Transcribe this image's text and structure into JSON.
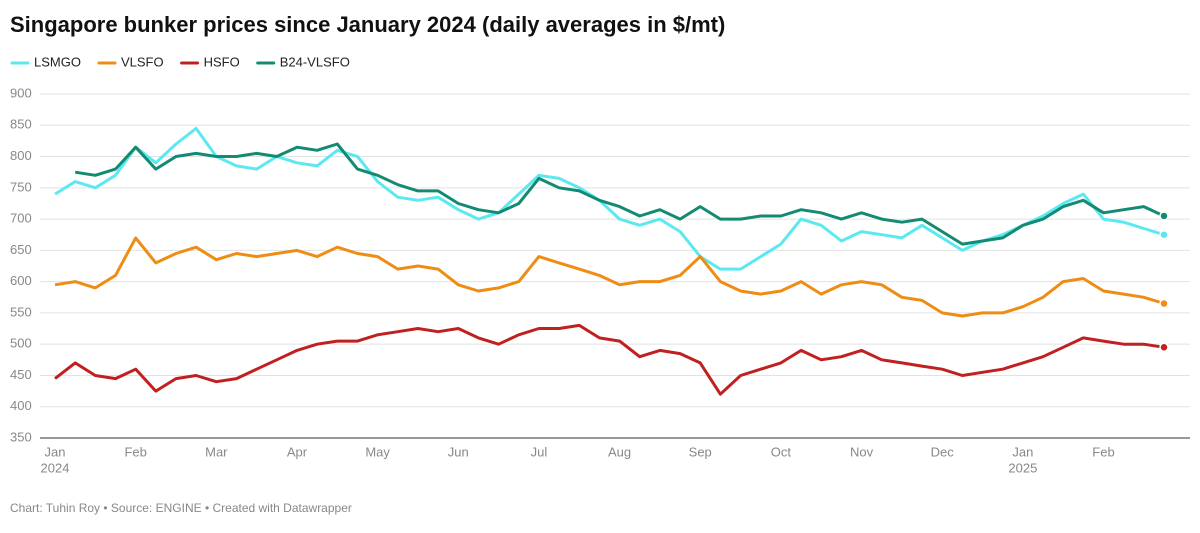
{
  "chart_data": {
    "type": "line",
    "title": "Singapore bunker prices since January 2024 (daily averages in $/mt)",
    "source": "Chart: Tuhin Roy • Source: ENGINE • Created with Datawrapper",
    "categories": [
      "Jan",
      null,
      null,
      null,
      "Feb",
      null,
      null,
      null,
      "Mar",
      null,
      null,
      null,
      "Apr",
      null,
      null,
      null,
      "May",
      null,
      null,
      null,
      "Jun",
      null,
      null,
      null,
      "Jul",
      null,
      null,
      null,
      "Aug",
      null,
      null,
      null,
      "Sep",
      null,
      null,
      null,
      "Oct",
      null,
      null,
      null,
      "Nov",
      null,
      null,
      null,
      "Dec",
      null,
      null,
      null,
      "Jan",
      null,
      null,
      null,
      "Feb",
      null,
      null,
      null
    ],
    "category_years": [
      "2024",
      null,
      null,
      null,
      null,
      null,
      null,
      null,
      null,
      null,
      null,
      null,
      null,
      null,
      null,
      null,
      null,
      null,
      null,
      null,
      null,
      null,
      null,
      null,
      null,
      null,
      null,
      null,
      null,
      null,
      null,
      null,
      null,
      null,
      null,
      null,
      null,
      null,
      null,
      null,
      null,
      null,
      null,
      null,
      null,
      null,
      null,
      null,
      "2025",
      null,
      null,
      null,
      null,
      null,
      null,
      null
    ],
    "ylim": [
      350,
      900
    ],
    "yticks": [
      350,
      400,
      450,
      500,
      550,
      600,
      650,
      700,
      750,
      800,
      850,
      900
    ],
    "grid": true,
    "series": [
      {
        "name": "LSMGO",
        "color": "#5ce8f0",
        "values": [
          740,
          760,
          750,
          770,
          815,
          790,
          820,
          845,
          800,
          785,
          780,
          800,
          790,
          785,
          810,
          800,
          760,
          735,
          730,
          735,
          715,
          700,
          710,
          740,
          770,
          765,
          750,
          730,
          700,
          690,
          700,
          680,
          640,
          620,
          620,
          640,
          660,
          700,
          690,
          665,
          680,
          675,
          670,
          690,
          670,
          650,
          665,
          675,
          690,
          705,
          725,
          740,
          700,
          695,
          685,
          675
        ]
      },
      {
        "name": "VLSFO",
        "color": "#ef8c14",
        "values": [
          595,
          600,
          590,
          610,
          670,
          630,
          645,
          655,
          635,
          645,
          640,
          645,
          650,
          640,
          655,
          645,
          640,
          620,
          625,
          620,
          595,
          585,
          590,
          600,
          640,
          630,
          620,
          610,
          595,
          600,
          600,
          610,
          640,
          600,
          585,
          580,
          585,
          600,
          580,
          595,
          600,
          595,
          575,
          570,
          550,
          545,
          550,
          550,
          560,
          575,
          600,
          605,
          585,
          580,
          575,
          565
        ]
      },
      {
        "name": "HSFO",
        "color": "#c0201f",
        "values": [
          445,
          470,
          450,
          445,
          460,
          425,
          445,
          450,
          440,
          445,
          460,
          475,
          490,
          500,
          505,
          505,
          515,
          520,
          525,
          520,
          525,
          510,
          500,
          515,
          525,
          525,
          530,
          510,
          505,
          480,
          490,
          485,
          470,
          420,
          450,
          460,
          470,
          490,
          475,
          480,
          490,
          475,
          470,
          465,
          460,
          450,
          455,
          460,
          470,
          480,
          495,
          510,
          505,
          500,
          500,
          495
        ]
      },
      {
        "name": "B24-VLSFO",
        "color": "#138a72",
        "values": [
          null,
          775,
          770,
          780,
          815,
          780,
          800,
          805,
          800,
          800,
          805,
          800,
          815,
          810,
          820,
          780,
          770,
          755,
          745,
          745,
          725,
          715,
          710,
          725,
          765,
          750,
          745,
          730,
          720,
          705,
          715,
          700,
          720,
          700,
          700,
          705,
          705,
          715,
          710,
          700,
          710,
          700,
          695,
          700,
          680,
          660,
          665,
          670,
          690,
          700,
          720,
          730,
          710,
          715,
          720,
          705
        ]
      }
    ]
  }
}
